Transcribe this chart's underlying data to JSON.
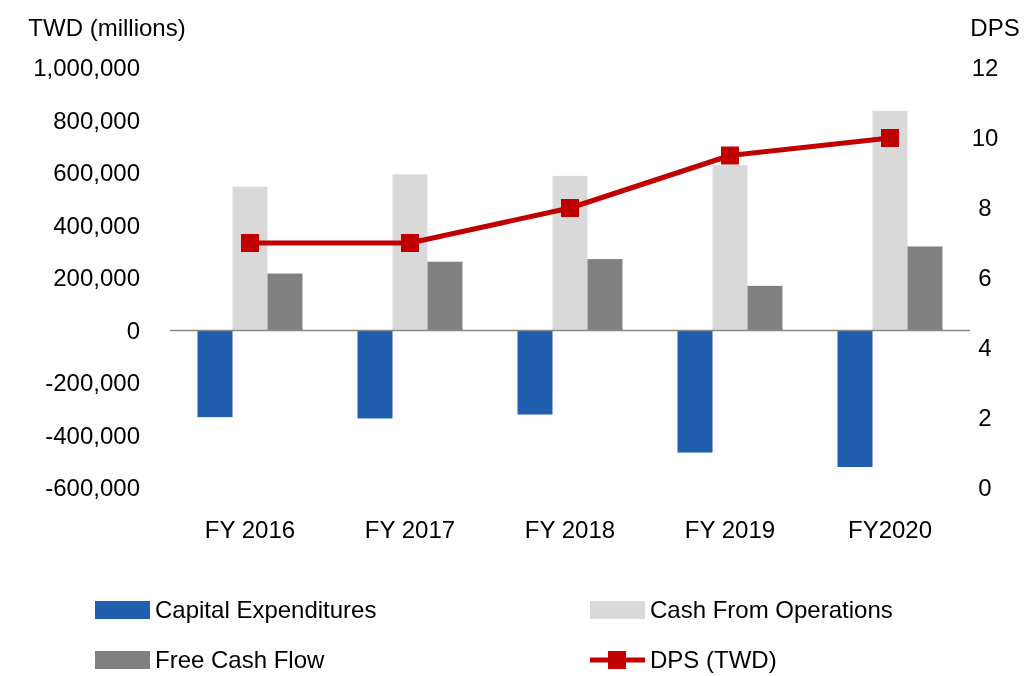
{
  "chart_data": {
    "type": "bar",
    "ylabel": "TWD (millions)",
    "y2label": "DPS",
    "categories": [
      "FY 2016",
      "FY 2017",
      "FY 2018",
      "FY 2019",
      "FY2020"
    ],
    "series": [
      {
        "name": "Capital Expenditures",
        "color": "#1f5fad",
        "values": [
          -330000,
          -335000,
          -320000,
          -465000,
          -520000
        ]
      },
      {
        "name": "Cash From Operations",
        "color": "#d9d9d9",
        "values": [
          548000,
          595000,
          589000,
          630000,
          837000
        ]
      },
      {
        "name": "Free Cash Flow",
        "color": "#808080",
        "values": [
          217000,
          262000,
          272000,
          170000,
          320000
        ]
      },
      {
        "name": "DPS (TWD)",
        "type": "line",
        "axis": "y2",
        "color": "#c00000",
        "marker": "square",
        "values": [
          7,
          7,
          8,
          9.5,
          10
        ]
      }
    ],
    "ylim": [
      -600000,
      1000000
    ],
    "yticks": [
      {
        "value": -600000,
        "label": "-600,000"
      },
      {
        "value": -400000,
        "label": "-400,000"
      },
      {
        "value": -200000,
        "label": "-200,000"
      },
      0,
      {
        "value": 200000,
        "label": "200,000"
      },
      {
        "value": 400000,
        "label": "400,000"
      },
      {
        "value": 600000,
        "label": "600,000"
      },
      {
        "value": 800000,
        "label": "800,000"
      },
      {
        "value": 1000000,
        "label": "1,000,000"
      }
    ],
    "y2lim": [
      0,
      12
    ],
    "y2ticks": [
      0,
      2,
      4,
      6,
      8,
      10,
      12
    ],
    "legend": "bottom"
  }
}
